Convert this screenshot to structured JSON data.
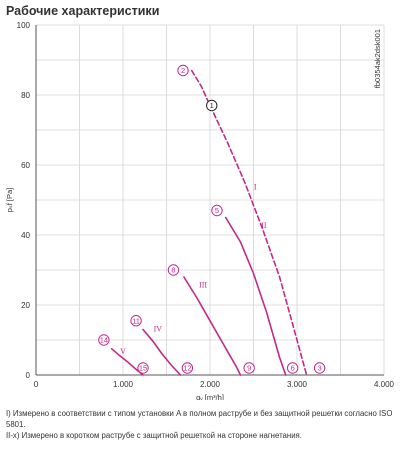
{
  "title": "Рабочие характеристики",
  "notes": [
    "I) Измерено в соответствии с типом установки A в полном раструбе и без защитной решетки согласно ISO 5801.",
    "II-x) Измерено в коротком раструбе с защитной решеткой на стороне нагнетания."
  ],
  "chart_data": {
    "type": "line",
    "code": "fb0354ak2dsk001",
    "xlabel": "qᵥ [m³/h]",
    "ylabel": "pₛf [Pa]",
    "xlim": [
      0,
      4000
    ],
    "ylim": [
      0,
      100
    ],
    "xticks": [
      {
        "value": 0,
        "label": "0"
      },
      {
        "value": 1000,
        "label": "1.000"
      },
      {
        "value": 2000,
        "label": "2.000"
      },
      {
        "value": 3000,
        "label": "3.000"
      },
      {
        "value": 4000,
        "label": "4.000"
      }
    ],
    "yticks": [
      {
        "value": 0,
        "label": "0"
      },
      {
        "value": 20,
        "label": "20"
      },
      {
        "value": 40,
        "label": "40"
      },
      {
        "value": 60,
        "label": "60"
      },
      {
        "value": 80,
        "label": "80"
      },
      {
        "value": 100,
        "label": "100"
      }
    ],
    "grid": true,
    "color": "#c2298a",
    "series": [
      {
        "name": "I",
        "dashed": true,
        "label_at": [
          2520,
          53
        ],
        "x": [
          1790,
          1900,
          2000,
          2200,
          2400,
          2600,
          2800,
          3000,
          3110
        ],
        "y": [
          87,
          82.5,
          77,
          66.5,
          55,
          42,
          28,
          10,
          0
        ]
      },
      {
        "name": "II",
        "dashed": false,
        "label_at": [
          2620,
          42
        ],
        "x": [
          2180,
          2350,
          2500,
          2650,
          2800,
          2870
        ],
        "y": [
          45,
          38,
          29,
          18,
          5,
          0
        ]
      },
      {
        "name": "III",
        "dashed": false,
        "label_at": [
          1920,
          25
        ],
        "x": [
          1700,
          1850,
          2000,
          2150,
          2300,
          2350
        ],
        "y": [
          28,
          22,
          15.5,
          9,
          2.5,
          0
        ]
      },
      {
        "name": "IV",
        "dashed": false,
        "label_at": [
          1400,
          12.5
        ],
        "x": [
          1230,
          1350,
          1450,
          1550,
          1660
        ],
        "y": [
          13,
          9.5,
          6,
          3,
          0
        ]
      },
      {
        "name": "V",
        "dashed": false,
        "label_at": [
          1000,
          6
        ],
        "x": [
          870,
          950,
          1050,
          1150,
          1230
        ],
        "y": [
          7.5,
          5.8,
          3.8,
          1.6,
          0
        ]
      }
    ],
    "markers": [
      {
        "label": "1",
        "x": 2020,
        "y": 77,
        "color": "#222222"
      },
      {
        "label": "2",
        "x": 1690,
        "y": 87,
        "color": "#c2298a"
      },
      {
        "label": "3",
        "x": 3260,
        "y": 2,
        "color": "#c2298a"
      },
      {
        "label": "5",
        "x": 2080,
        "y": 47,
        "color": "#c2298a"
      },
      {
        "label": "6",
        "x": 2950,
        "y": 2,
        "color": "#c2298a"
      },
      {
        "label": "8",
        "x": 1580,
        "y": 30,
        "color": "#c2298a"
      },
      {
        "label": "9",
        "x": 2450,
        "y": 2,
        "color": "#c2298a"
      },
      {
        "label": "11",
        "x": 1150,
        "y": 15.5,
        "color": "#c2298a"
      },
      {
        "label": "12",
        "x": 1740,
        "y": 2,
        "color": "#c2298a"
      },
      {
        "label": "14",
        "x": 780,
        "y": 10,
        "color": "#c2298a"
      },
      {
        "label": "15",
        "x": 1230,
        "y": 2,
        "color": "#c2298a"
      }
    ]
  }
}
